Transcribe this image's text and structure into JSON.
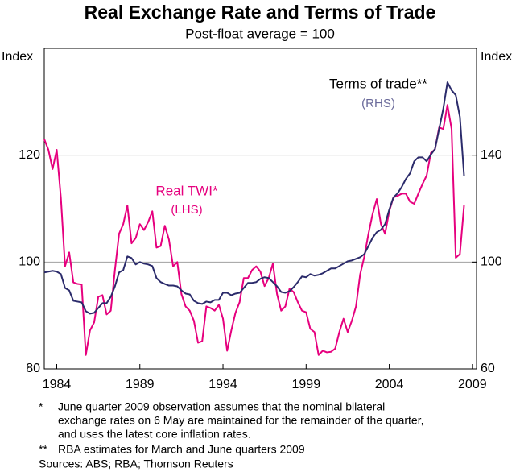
{
  "chart_data": {
    "type": "line",
    "title": "Real Exchange Rate and Terms of Trade",
    "subtitle": "Post-float average = 100",
    "y_label": "Index",
    "y2_label": "Index",
    "x": [
      1983.75,
      1984,
      1984.25,
      1984.5,
      1984.75,
      1985,
      1985.25,
      1985.5,
      1985.75,
      1986,
      1986.25,
      1986.5,
      1986.75,
      1987,
      1987.25,
      1987.5,
      1987.75,
      1988,
      1988.25,
      1988.5,
      1988.75,
      1989,
      1989.25,
      1989.5,
      1989.75,
      1990,
      1990.25,
      1990.5,
      1990.75,
      1991,
      1991.25,
      1991.5,
      1991.75,
      1992,
      1992.25,
      1992.5,
      1992.75,
      1993,
      1993.25,
      1993.5,
      1993.75,
      1994,
      1994.25,
      1994.5,
      1994.75,
      1995,
      1995.25,
      1995.5,
      1995.75,
      1996,
      1996.25,
      1996.5,
      1996.75,
      1997,
      1997.25,
      1997.5,
      1997.75,
      1998,
      1998.25,
      1998.5,
      1998.75,
      1999,
      1999.25,
      1999.5,
      1999.75,
      2000,
      2000.25,
      2000.5,
      2000.75,
      2001,
      2001.25,
      2001.5,
      2001.75,
      2002,
      2002.25,
      2002.5,
      2002.75,
      2003,
      2003.25,
      2003.5,
      2003.75,
      2004,
      2004.25,
      2004.5,
      2004.75,
      2005,
      2005.25,
      2005.5,
      2005.75,
      2006,
      2006.25,
      2006.5,
      2006.75,
      2007,
      2007.25,
      2007.5,
      2007.75,
      2008,
      2008.25,
      2008.5,
      2008.75,
      2009
    ],
    "series": [
      {
        "name": "Real TWI*",
        "axis_note": "(LHS)",
        "color": "#e6007e",
        "axis": "y",
        "values": [
          123,
          121,
          117.4,
          121,
          112,
          99.2,
          101.8,
          96.2,
          95.9,
          95.8,
          82.6,
          87.2,
          88.7,
          93.5,
          93.8,
          90.2,
          90.9,
          98.5,
          105.3,
          107.1,
          110.6,
          103.5,
          104.5,
          107.1,
          106,
          107.5,
          109.5,
          102.7,
          103,
          106.8,
          104.2,
          99.2,
          100,
          94,
          91.7,
          90.9,
          89,
          84.9,
          85.2,
          91.7,
          91.4,
          90.9,
          92,
          89.4,
          83.4,
          87.2,
          90.5,
          92.5,
          97,
          97,
          98.5,
          99.2,
          98.2,
          95.5,
          97,
          99.7,
          94,
          90.9,
          91.7,
          95,
          94.4,
          92.5,
          90.9,
          90.6,
          87.5,
          86.9,
          82.6,
          83.4,
          83.1,
          83.2,
          83.8,
          86.9,
          89.4,
          86.9,
          89,
          91.7,
          97.7,
          101,
          105.3,
          109,
          111.8,
          107.1,
          105.3,
          109.5,
          112.1,
          112.4,
          112.8,
          112.8,
          111.3,
          110.9,
          112.8,
          114.6,
          116.2,
          120.4,
          121.1,
          125.2,
          124.9,
          129.4,
          124.9,
          100.8,
          101.5,
          110.6
        ]
      },
      {
        "name": "Terms of trade**",
        "axis_note": "(RHS)",
        "color": "#2b2b6b",
        "axis": "y2",
        "values": [
          96.1,
          96.4,
          96.7,
          96.4,
          95.5,
          90.3,
          89.4,
          85.5,
          85.2,
          84.9,
          81.6,
          80.7,
          81,
          82.8,
          84.6,
          84.6,
          87,
          90.9,
          96.1,
          97,
          102.1,
          101.5,
          99.1,
          100,
          99.4,
          99.1,
          98.5,
          94,
          92.5,
          91.8,
          91.2,
          91.2,
          90.9,
          89.4,
          88.2,
          87.9,
          85.5,
          84.6,
          84.3,
          85.2,
          84.9,
          85.8,
          85.8,
          88.5,
          88.5,
          87.6,
          88.2,
          88.5,
          90.3,
          92.2,
          92.2,
          92.5,
          93.7,
          94.3,
          94,
          92.5,
          90.9,
          88.8,
          88.5,
          89.1,
          90.6,
          92.5,
          94.6,
          94.3,
          95.5,
          94.9,
          95.2,
          95.8,
          96.7,
          97.6,
          97.6,
          98.5,
          99.4,
          100.3,
          100.6,
          101.2,
          101.8,
          103,
          106,
          109.1,
          111.2,
          112.1,
          114.2,
          119.6,
          124.2,
          125.7,
          128.1,
          131.1,
          133.2,
          137.7,
          139.2,
          139.2,
          137.7,
          140.2,
          142.3,
          149.8,
          157.4,
          167.3,
          164.3,
          162.5,
          154.3,
          132.3
        ]
      }
    ],
    "xlim": [
      1983.75,
      2009.75
    ],
    "xticks": [
      {
        "value": 1984.5,
        "label": "1984"
      },
      {
        "value": 1989.5,
        "label": "1989"
      },
      {
        "value": 1994.5,
        "label": "1994"
      },
      {
        "value": 1999.5,
        "label": "1999"
      },
      {
        "value": 2004.5,
        "label": "2004"
      },
      {
        "value": 2009.5,
        "label": "2009"
      }
    ],
    "ylim": [
      80,
      140
    ],
    "yticks": [
      80,
      100,
      120
    ],
    "y2lim": [
      60,
      180
    ],
    "y2ticks": [
      60,
      100,
      140
    ],
    "grid": true,
    "footnotes": [
      {
        "marker": "*",
        "lines": [
          "June quarter 2009 observation assumes that the nominal bilateral",
          "exchange rates on 6 May are maintained for the remainder of the quarter,",
          "and uses the latest core inflation rates."
        ]
      },
      {
        "marker": "**",
        "lines": [
          "RBA estimates for March and June quarters 2009"
        ]
      }
    ],
    "sources": "Sources: ABS; RBA; Thomson Reuters"
  }
}
